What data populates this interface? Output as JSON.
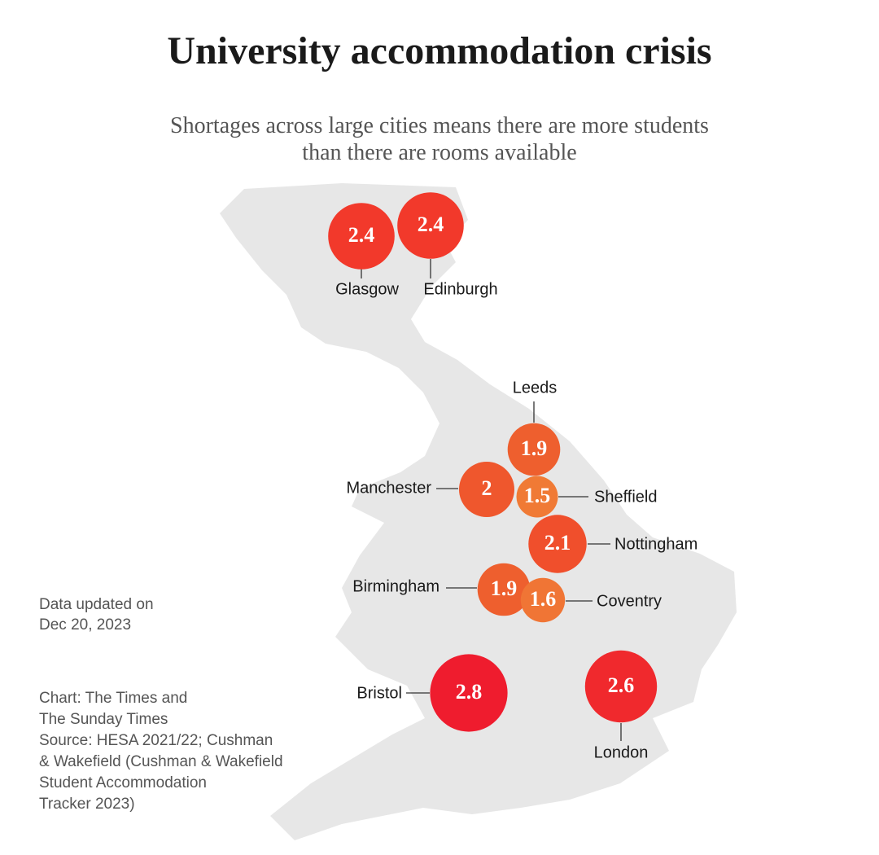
{
  "chart_data": {
    "type": "bubble-map",
    "title": "University accommodation crisis",
    "subtitle": "Shortages across large cities means there are more students than there are rooms available",
    "categories": [
      "Glasgow",
      "Edinburgh",
      "Leeds",
      "Manchester",
      "Sheffield",
      "Nottingham",
      "Birmingham",
      "Coventry",
      "Bristol",
      "London"
    ],
    "values": [
      2.4,
      2.4,
      1.9,
      2,
      1.5,
      2.1,
      1.9,
      1.6,
      2.8,
      2.6
    ],
    "colors": [
      "#f2392b",
      "#f2392b",
      "#ee5f2e",
      "#ef572d",
      "#f07a35",
      "#f04f2c",
      "#ee5f2e",
      "#f07535",
      "#ef1c2e",
      "#f0292d"
    ],
    "updated": [
      "Data updated on",
      "Dec 20, 2023"
    ],
    "credit": [
      "Chart: The Times and",
      "The Sunday Times",
      "Source: HESA 2021/22; Cushman",
      "& Wakefield (Cushman & Wakefield",
      "Student Accommodation",
      "Tracker 2023)"
    ]
  }
}
